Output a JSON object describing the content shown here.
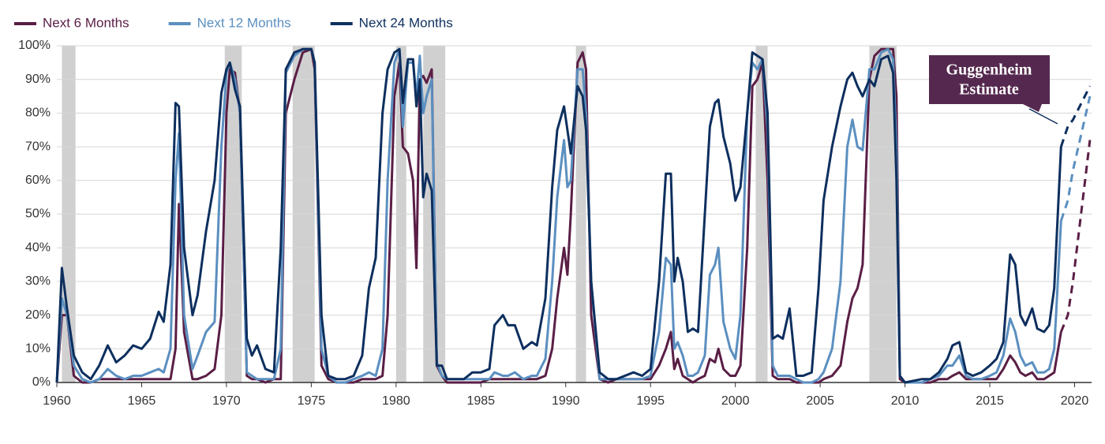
{
  "chart_data": {
    "type": "line",
    "annotation": [
      "Guggenheim",
      "Estimate"
    ],
    "annotation_color": "#55294f",
    "estimate_from": 2019.2,
    "recession_color": "#d0d0d0",
    "recessions": [
      [
        1960.3,
        1961.1
      ],
      [
        1969.9,
        1970.9
      ],
      [
        1973.9,
        1975.2
      ],
      [
        1980.0,
        1980.6
      ],
      [
        1981.6,
        1982.9
      ],
      [
        1990.6,
        1991.2
      ],
      [
        2001.2,
        2001.9
      ],
      [
        2007.9,
        2009.5
      ]
    ],
    "xlim": [
      1960,
      2021
    ],
    "xticks": [
      1960,
      1965,
      1970,
      1975,
      1980,
      1985,
      1990,
      1995,
      2000,
      2005,
      2010,
      2015,
      2020
    ],
    "ylim": [
      0,
      100
    ],
    "yticks": [
      {
        "value": 0,
        "label": "0%"
      },
      {
        "value": 10,
        "label": "10%"
      },
      {
        "value": 20,
        "label": "20%"
      },
      {
        "value": 30,
        "label": "30%"
      },
      {
        "value": 40,
        "label": "40%"
      },
      {
        "value": 50,
        "label": "50%"
      },
      {
        "value": 60,
        "label": "60%"
      },
      {
        "value": 70,
        "label": "70%"
      },
      {
        "value": 80,
        "label": "80%"
      },
      {
        "value": 90,
        "label": "90%"
      },
      {
        "value": 100,
        "label": "100%"
      }
    ],
    "grid": true,
    "legend": "top-left",
    "x": [
      1960.0,
      1960.3,
      1960.6,
      1961.0,
      1961.5,
      1962.0,
      1962.5,
      1963.0,
      1963.5,
      1964.0,
      1964.5,
      1965.0,
      1965.5,
      1966.0,
      1966.3,
      1966.7,
      1967.0,
      1967.2,
      1967.5,
      1968.0,
      1968.3,
      1968.8,
      1969.3,
      1969.7,
      1970.0,
      1970.2,
      1970.5,
      1970.8,
      1971.2,
      1971.5,
      1971.8,
      1972.3,
      1972.8,
      1973.2,
      1973.5,
      1974.0,
      1974.5,
      1975.0,
      1975.2,
      1975.6,
      1976.0,
      1976.5,
      1977.0,
      1977.5,
      1978.0,
      1978.4,
      1978.8,
      1979.2,
      1979.5,
      1979.9,
      1980.2,
      1980.4,
      1980.7,
      1981.0,
      1981.2,
      1981.4,
      1981.6,
      1981.8,
      1982.1,
      1982.4,
      1982.7,
      1983.0,
      1984.0,
      1984.5,
      1985.0,
      1985.5,
      1985.8,
      1986.3,
      1986.6,
      1987.0,
      1987.5,
      1988.0,
      1988.3,
      1988.8,
      1989.2,
      1989.5,
      1989.9,
      1990.1,
      1990.3,
      1990.7,
      1991.0,
      1991.2,
      1991.5,
      1992.0,
      1992.5,
      1993.0,
      1994.0,
      1994.5,
      1995.0,
      1995.5,
      1995.9,
      1996.2,
      1996.4,
      1996.6,
      1996.9,
      1997.2,
      1997.5,
      1997.8,
      1998.2,
      1998.5,
      1998.8,
      1999.0,
      1999.3,
      1999.7,
      2000.0,
      2000.3,
      2000.7,
      2001.0,
      2001.3,
      2001.6,
      2001.9,
      2002.2,
      2002.5,
      2002.8,
      2003.2,
      2003.6,
      2004.0,
      2004.5,
      2004.9,
      2005.2,
      2005.7,
      2006.2,
      2006.6,
      2006.9,
      2007.2,
      2007.5,
      2007.9,
      2008.2,
      2008.6,
      2009.0,
      2009.3,
      2009.5,
      2009.7,
      2010.0,
      2011.0,
      2011.5,
      2012.0,
      2012.5,
      2012.8,
      2013.2,
      2013.6,
      2014.0,
      2014.5,
      2015.0,
      2015.4,
      2015.8,
      2016.2,
      2016.5,
      2016.8,
      2017.1,
      2017.5,
      2017.8,
      2018.2,
      2018.5,
      2018.8,
      2019.2,
      2019.6,
      2019.9,
      2020.9
    ],
    "series": [
      {
        "name": "Next 6 Months",
        "color": "#5a1e45",
        "values": [
          0,
          20,
          20,
          2,
          0,
          0,
          1,
          1,
          1,
          1,
          1,
          1,
          1,
          1,
          1,
          1,
          10,
          53,
          15,
          1,
          1,
          2,
          4,
          20,
          80,
          93,
          92,
          80,
          2,
          1,
          1,
          0,
          1,
          1,
          80,
          90,
          98,
          99,
          93,
          5,
          1,
          0,
          0,
          0,
          1,
          1,
          1,
          2,
          20,
          85,
          95,
          70,
          68,
          60,
          34,
          90,
          91,
          89,
          93,
          5,
          2,
          0,
          0,
          0,
          0,
          1,
          1,
          1,
          1,
          1,
          1,
          1,
          1,
          2,
          10,
          25,
          40,
          32,
          50,
          95,
          98,
          93,
          20,
          1,
          0,
          1,
          1,
          1,
          1,
          5,
          10,
          15,
          4,
          7,
          2,
          1,
          0,
          1,
          2,
          7,
          6,
          10,
          4,
          2,
          2,
          5,
          40,
          88,
          90,
          95,
          60,
          2,
          1,
          1,
          1,
          0,
          0,
          0,
          0,
          1,
          2,
          5,
          18,
          25,
          28,
          35,
          90,
          97,
          99,
          99,
          99,
          85,
          1,
          0,
          0,
          0,
          1,
          1,
          2,
          3,
          1,
          1,
          1,
          1,
          1,
          4,
          8,
          6,
          3,
          2,
          3,
          1,
          1,
          2,
          3,
          15,
          20,
          30,
          72
        ]
      },
      {
        "name": "Next 12 Months",
        "color": "#5b8fc0",
        "values": [
          0,
          25,
          20,
          5,
          1,
          0,
          1,
          4,
          2,
          1,
          2,
          2,
          3,
          4,
          3,
          10,
          60,
          74,
          20,
          4,
          8,
          15,
          18,
          70,
          92,
          95,
          90,
          80,
          3,
          2,
          1,
          1,
          1,
          10,
          92,
          97,
          99,
          99,
          95,
          10,
          2,
          0,
          0,
          1,
          2,
          3,
          2,
          10,
          60,
          95,
          99,
          76,
          95,
          95,
          85,
          97,
          80,
          85,
          90,
          6,
          2,
          1,
          1,
          1,
          1,
          1,
          3,
          2,
          2,
          3,
          1,
          2,
          2,
          7,
          30,
          55,
          72,
          58,
          60,
          93,
          93,
          80,
          30,
          1,
          1,
          1,
          1,
          1,
          2,
          15,
          37,
          35,
          10,
          12,
          8,
          2,
          2,
          3,
          8,
          32,
          35,
          40,
          18,
          10,
          7,
          20,
          80,
          95,
          93,
          96,
          75,
          5,
          2,
          2,
          2,
          1,
          0,
          0,
          1,
          3,
          10,
          30,
          70,
          78,
          70,
          69,
          93,
          93,
          98,
          99,
          96,
          70,
          2,
          0,
          0,
          1,
          2,
          5,
          5,
          8,
          2,
          1,
          1,
          2,
          3,
          8,
          19,
          15,
          8,
          5,
          6,
          3,
          3,
          4,
          10,
          48,
          54,
          63,
          85
        ]
      },
      {
        "name": "Next 24 Months",
        "color": "#0d2f5e",
        "values": [
          0,
          34,
          22,
          8,
          3,
          1,
          5,
          11,
          6,
          8,
          11,
          10,
          13,
          21,
          18,
          35,
          83,
          82,
          40,
          20,
          26,
          45,
          60,
          86,
          93,
          95,
          87,
          82,
          13,
          8,
          11,
          4,
          3,
          40,
          93,
          98,
          99,
          99,
          95,
          20,
          2,
          1,
          1,
          2,
          8,
          28,
          37,
          80,
          93,
          98,
          99,
          83,
          96,
          96,
          82,
          90,
          55,
          62,
          57,
          5,
          5,
          1,
          1,
          3,
          3,
          4,
          17,
          20,
          17,
          17,
          10,
          12,
          11,
          25,
          58,
          75,
          82,
          75,
          68,
          88,
          85,
          75,
          30,
          3,
          1,
          1,
          3,
          2,
          4,
          30,
          62,
          62,
          30,
          37,
          30,
          15,
          16,
          15,
          50,
          76,
          83,
          84,
          73,
          65,
          54,
          58,
          80,
          98,
          97,
          96,
          80,
          13,
          14,
          13,
          22,
          2,
          2,
          3,
          28,
          54,
          70,
          82,
          90,
          92,
          88,
          85,
          90,
          88,
          96,
          97,
          92,
          60,
          2,
          0,
          1,
          1,
          3,
          7,
          11,
          12,
          3,
          2,
          3,
          5,
          7,
          12,
          38,
          35,
          20,
          17,
          22,
          16,
          15,
          17,
          28,
          70,
          76,
          78,
          88
        ]
      }
    ]
  }
}
